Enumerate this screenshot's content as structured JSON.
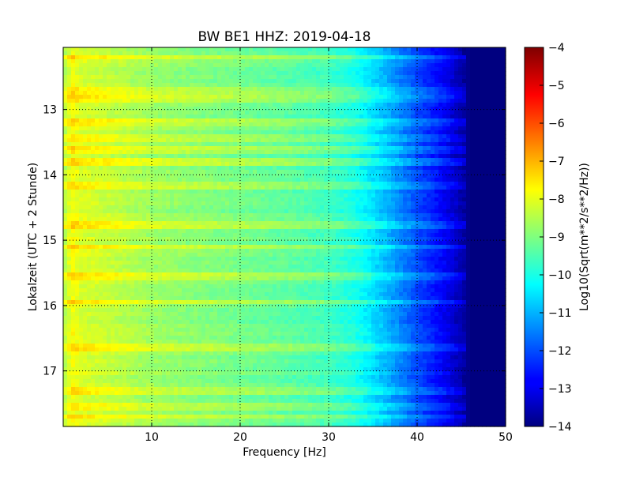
{
  "chart_data": {
    "type": "heatmap",
    "title": "BW BE1 HHZ: 2019-04-18",
    "xlabel": "Frequency [Hz]",
    "ylabel": "Lokalzeit (UTC + 2 Stunde)",
    "xlim": [
      0,
      50
    ],
    "ylim": [
      12.05,
      17.85
    ],
    "y_inverted": true,
    "x_ticks": [
      10,
      20,
      30,
      40,
      50
    ],
    "y_ticks": [
      13,
      14,
      15,
      16,
      17
    ],
    "grid": true,
    "colorbar": {
      "label": "Log10(Sqrt(m**2/s**2/Hz))",
      "range": [
        -14,
        -4
      ],
      "ticks": [
        -4,
        -5,
        -6,
        -7,
        -8,
        -9,
        -10,
        -11,
        -12,
        -13,
        -14
      ],
      "colormap": "jet"
    },
    "spectral_profile": {
      "frequency_hz": [
        0,
        1,
        2,
        5,
        10,
        15,
        20,
        25,
        30,
        33,
        36,
        40,
        43,
        45,
        46,
        50
      ],
      "log_amplitude": [
        -8.6,
        -7.8,
        -8.1,
        -8.3,
        -8.7,
        -8.9,
        -9.1,
        -9.3,
        -9.6,
        -10.0,
        -10.8,
        -12.0,
        -12.8,
        -13.5,
        -14,
        -14
      ]
    },
    "bright_bands_hours": [
      12.2,
      12.7,
      12.85,
      13.2,
      13.45,
      13.6,
      13.8,
      14.15,
      14.75,
      15.1,
      15.55,
      15.95,
      16.65,
      17.3,
      17.55,
      17.7
    ]
  }
}
